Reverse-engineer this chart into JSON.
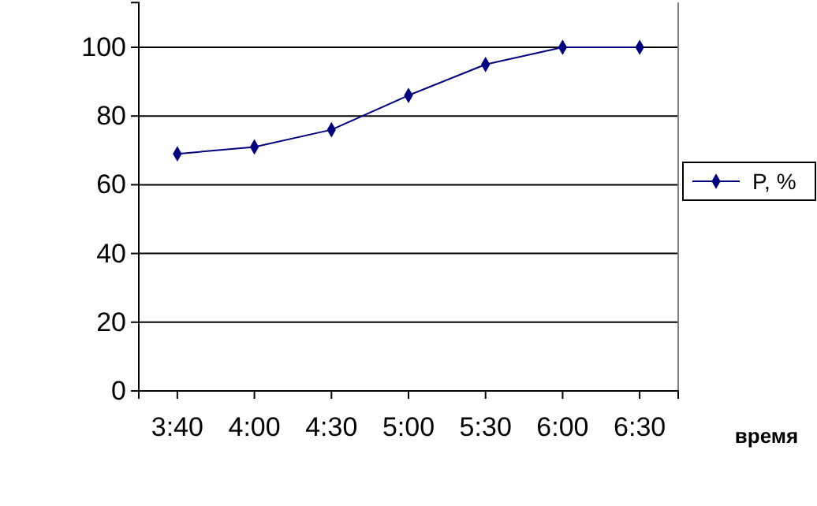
{
  "chart_data": {
    "type": "line",
    "xlabel": "время",
    "categories": [
      "3:40",
      "4:00",
      "4:30",
      "5:00",
      "5:30",
      "6:00",
      "6:30"
    ],
    "series": [
      {
        "name": "P, %",
        "color": "#000080",
        "values": [
          69,
          71,
          76,
          86,
          95,
          100,
          100
        ]
      }
    ],
    "ylim": [
      0,
      113
    ],
    "yticks": [
      0,
      20,
      40,
      60,
      80,
      100
    ],
    "grid": "y",
    "legend": "right",
    "marker": "diamond",
    "line_style": "solid"
  }
}
